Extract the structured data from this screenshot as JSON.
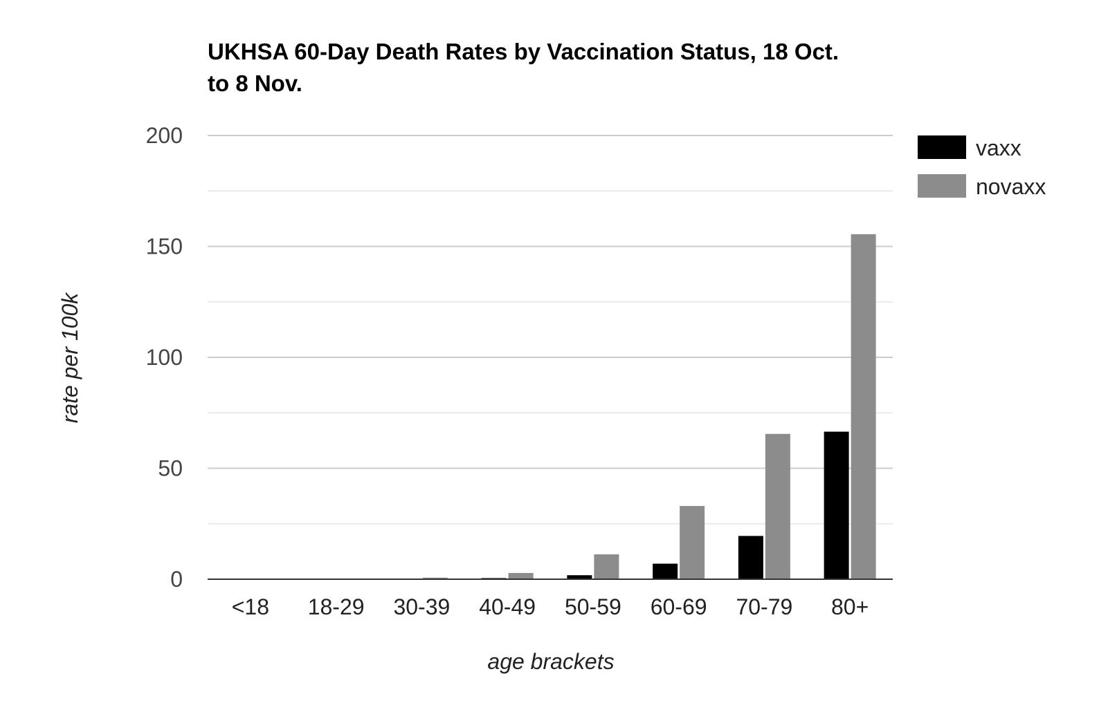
{
  "chart_data": {
    "type": "bar",
    "title_lines": [
      "UKHSA 60-Day Death Rates by Vaccination Status, 18 Oct.",
      "to 8 Nov."
    ],
    "xlabel": "age brackets",
    "ylabel": "rate per 100k",
    "categories": [
      "<18",
      "18-29",
      "30-39",
      "40-49",
      "50-59",
      "60-69",
      "70-79",
      "80+"
    ],
    "series": [
      {
        "name": "vaxx",
        "color": "#000000",
        "values": [
          0,
          0,
          0.1,
          0.5,
          1.8,
          7,
          19.5,
          66.5
        ]
      },
      {
        "name": "novaxx",
        "color": "#8c8c8c",
        "values": [
          0,
          0,
          0.7,
          2.8,
          11.2,
          33,
          65.5,
          155.5
        ]
      }
    ],
    "ylim": [
      0,
      200
    ],
    "y_ticks": [
      0,
      50,
      100,
      150,
      200
    ],
    "y_minor_ticks": [
      25,
      75,
      125,
      175
    ],
    "grid": true,
    "legend_position": "right"
  }
}
